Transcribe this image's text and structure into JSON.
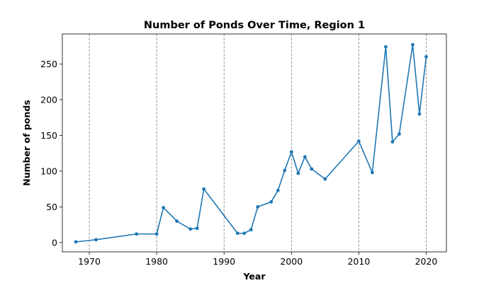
{
  "chart_data": {
    "type": "line",
    "title": "Number of Ponds Over Time, Region 1",
    "xlabel": "Year",
    "ylabel": "Number of ponds",
    "xlim": [
      1966,
      2023
    ],
    "ylim": [
      -13,
      292
    ],
    "x_ticks": [
      1970,
      1980,
      1990,
      2000,
      2010,
      2020
    ],
    "y_ticks": [
      0,
      50,
      100,
      150,
      200,
      250
    ],
    "grid": "vertical-dashed",
    "legend": "none",
    "line_color": "#1f77b4",
    "grid_color": "#808080",
    "series": [
      {
        "x": [
          1968,
          1971,
          1977,
          1980,
          1981,
          1983,
          1985,
          1986,
          1987,
          1992,
          1993,
          1994,
          1995,
          1997,
          1998,
          1999,
          2000,
          2001,
          2002,
          2003,
          2005,
          2010,
          2012,
          2014,
          2015,
          2016,
          2018,
          2019,
          2020
        ],
        "y": [
          1,
          4,
          12,
          12,
          49,
          30,
          19,
          20,
          75,
          13,
          13,
          18,
          50,
          57,
          73,
          101,
          127,
          97,
          120,
          103,
          89,
          142,
          98,
          274,
          141,
          152,
          277,
          180,
          260
        ]
      }
    ]
  }
}
